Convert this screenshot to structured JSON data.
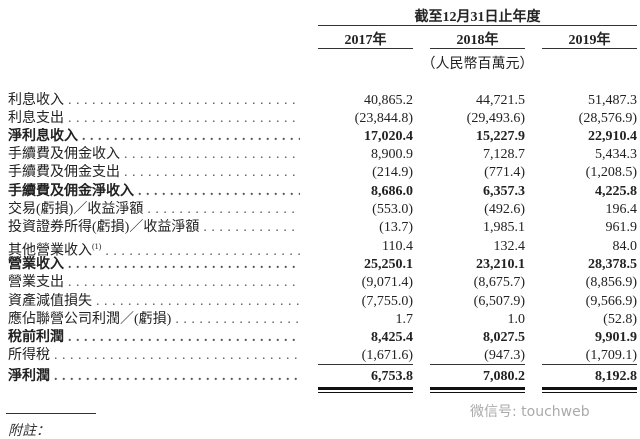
{
  "header": {
    "period_title": "截至12月31日止年度",
    "years": [
      "2017年",
      "2018年",
      "2019年"
    ],
    "unit": "（人民幣百萬元）"
  },
  "rows": [
    {
      "label": "利息收入",
      "values": [
        "40,865.2",
        "44,721.5",
        "51,487.3"
      ],
      "bold": false
    },
    {
      "label": "利息支出",
      "values": [
        "(23,844.8)",
        "(29,493.6)",
        "(28,576.9)"
      ],
      "bold": false
    },
    {
      "label": "淨利息收入",
      "values": [
        "17,020.4",
        "15,227.9",
        "22,910.4"
      ],
      "bold": true
    },
    {
      "label": "手續費及佣金收入",
      "values": [
        "8,900.9",
        "7,128.7",
        "5,434.3"
      ],
      "bold": false
    },
    {
      "label": "手續費及佣金支出",
      "values": [
        "(214.9)",
        "(771.4)",
        "(1,208.5)"
      ],
      "bold": false
    },
    {
      "label": "手續費及佣金淨收入",
      "values": [
        "8,686.0",
        "6,357.3",
        "4,225.8"
      ],
      "bold": true
    },
    {
      "label": "交易(虧損)／收益淨額",
      "values": [
        "(553.0)",
        "(492.6)",
        "196.4"
      ],
      "bold": false
    },
    {
      "label": "投資證券所得(虧損)／收益淨額",
      "values": [
        "(13.7)",
        "1,985.1",
        "961.9"
      ],
      "bold": false
    },
    {
      "label": "其他營業收入",
      "footnote": "(1)",
      "values": [
        "110.4",
        "132.4",
        "84.0"
      ],
      "bold": false
    },
    {
      "label": "營業收入",
      "values": [
        "25,250.1",
        "23,210.1",
        "28,378.5"
      ],
      "bold": true
    },
    {
      "label": "營業支出",
      "values": [
        "(9,071.4)",
        "(8,675.7)",
        "(8,856.9)"
      ],
      "bold": false
    },
    {
      "label": "資產減值損失",
      "values": [
        "(7,755.0)",
        "(6,507.9)",
        "(9,566.9)"
      ],
      "bold": false
    },
    {
      "label": "應佔聯營公司利潤／(虧損)",
      "values": [
        "1.7",
        "1.0",
        "(52.8)"
      ],
      "bold": false
    },
    {
      "label": "稅前利潤",
      "values": [
        "8,425.4",
        "8,027.5",
        "9,901.9"
      ],
      "bold": true
    },
    {
      "label": "所得稅",
      "values": [
        "(1,671.6)",
        "(947.3)",
        "(1,709.1)"
      ],
      "bold": false
    },
    {
      "label": "淨利潤",
      "values": [
        "6,753.8",
        "7,080.2",
        "8,192.8"
      ],
      "bold": true
    }
  ],
  "footer": {
    "note_label": "附註：",
    "watermark": "微信号: touchweb"
  }
}
